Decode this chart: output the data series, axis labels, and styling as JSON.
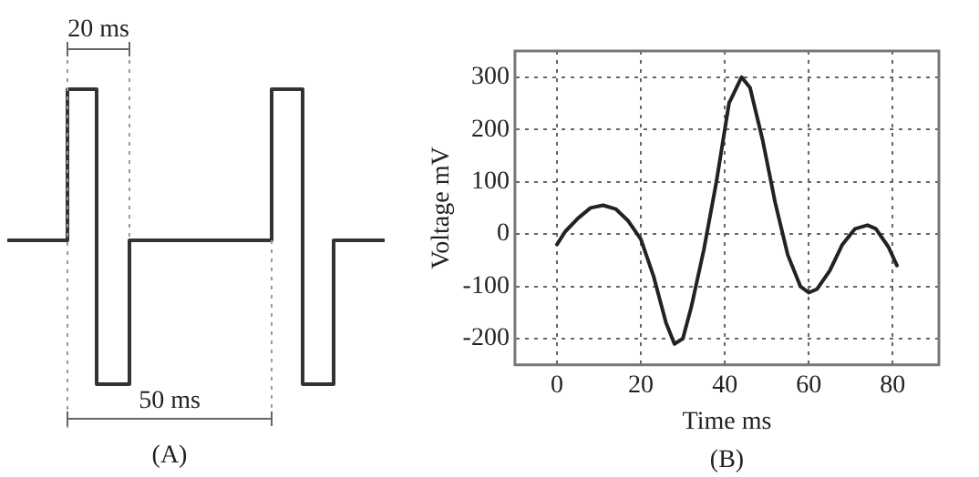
{
  "chart_data": [
    {
      "type": "other",
      "annotations": [
        "20 ms",
        "50 ms",
        "(A)"
      ]
    },
    {
      "type": "line",
      "xlabel": "Time ms",
      "ylabel": "Voltage mV",
      "xlim": [
        -10,
        91
      ],
      "ylim": [
        -250,
        350
      ],
      "xticks": [
        0,
        20,
        40,
        60,
        80
      ],
      "yticks": [
        -200,
        -100,
        0,
        100,
        200,
        300
      ],
      "x": [
        0,
        2,
        5,
        8,
        11,
        14,
        17,
        20,
        23,
        26,
        28,
        30,
        32,
        35,
        38,
        41,
        44,
        46,
        49,
        52,
        55,
        58,
        60,
        62,
        65,
        68,
        71,
        74,
        76,
        79,
        81
      ],
      "series": [
        {
          "color": "#222222",
          "values": [
            -20,
            5,
            30,
            50,
            55,
            48,
            25,
            -10,
            -80,
            -170,
            -210,
            -200,
            -140,
            -30,
            100,
            250,
            300,
            280,
            180,
            60,
            -40,
            -100,
            -112,
            -105,
            -70,
            -20,
            10,
            17,
            10,
            -25,
            -60
          ]
        }
      ],
      "annotations": [
        "(B)"
      ],
      "grid": true,
      "legend": false,
      "marker": "none",
      "line_style": "solid"
    }
  ]
}
